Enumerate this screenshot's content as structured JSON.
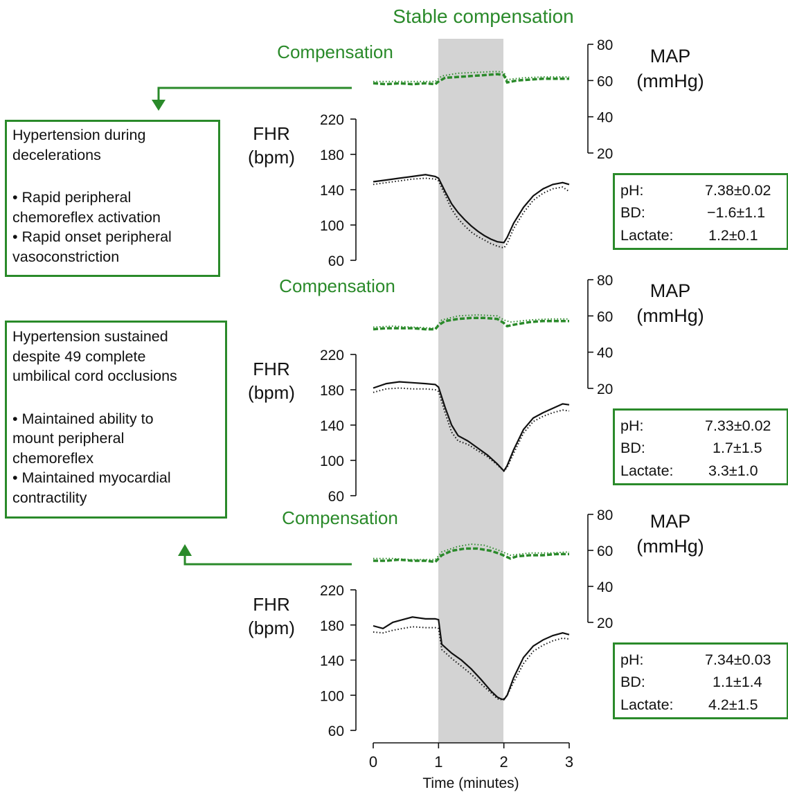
{
  "chart_data": {
    "type": "line",
    "title": "Stable compensation",
    "xlabel": "Time (minutes)",
    "x_ticks": [
      "0",
      "1",
      "2",
      "3"
    ],
    "xlim": [
      0,
      3
    ],
    "occlusion_shading": [
      1,
      2
    ],
    "colors": {
      "map": "#2a8a2a",
      "fhr": "#111111",
      "shade": "#d3d3d3",
      "accent": "#2a8a2a"
    },
    "panels": [
      {
        "phase_label": "Compensation",
        "fhr_label": [
          "FHR",
          "(bpm)"
        ],
        "fhr_ticks": [
          "220",
          "180",
          "140",
          "100",
          "60"
        ],
        "fhr_ylim": [
          60,
          220
        ],
        "map_label": [
          "MAP",
          "(mmHg)"
        ],
        "map_ticks": [
          "80",
          "60",
          "40",
          "20"
        ],
        "map_ylim": [
          20,
          80
        ],
        "fhr_solid": [
          [
            0,
            149
          ],
          [
            0.2,
            151
          ],
          [
            0.4,
            153
          ],
          [
            0.6,
            155
          ],
          [
            0.8,
            157
          ],
          [
            0.95,
            155
          ],
          [
            1.0,
            153
          ],
          [
            1.1,
            138
          ],
          [
            1.2,
            124
          ],
          [
            1.3,
            114
          ],
          [
            1.4,
            106
          ],
          [
            1.5,
            99
          ],
          [
            1.6,
            93
          ],
          [
            1.7,
            88
          ],
          [
            1.8,
            84
          ],
          [
            1.9,
            81
          ],
          [
            2.0,
            80
          ],
          [
            2.05,
            86
          ],
          [
            2.15,
            102
          ],
          [
            2.3,
            120
          ],
          [
            2.45,
            133
          ],
          [
            2.6,
            141
          ],
          [
            2.75,
            146
          ],
          [
            2.9,
            148
          ],
          [
            3.0,
            146
          ]
        ],
        "fhr_dotted": [
          [
            0,
            146
          ],
          [
            0.2,
            148
          ],
          [
            0.4,
            150
          ],
          [
            0.6,
            152
          ],
          [
            0.8,
            153
          ],
          [
            0.95,
            152
          ],
          [
            1.0,
            150
          ],
          [
            1.1,
            134
          ],
          [
            1.2,
            118
          ],
          [
            1.3,
            107
          ],
          [
            1.4,
            99
          ],
          [
            1.5,
            92
          ],
          [
            1.6,
            87
          ],
          [
            1.7,
            83
          ],
          [
            1.8,
            79
          ],
          [
            1.9,
            76
          ],
          [
            2.0,
            74
          ],
          [
            2.05,
            79
          ],
          [
            2.15,
            96
          ],
          [
            2.3,
            114
          ],
          [
            2.45,
            128
          ],
          [
            2.6,
            136
          ],
          [
            2.75,
            141
          ],
          [
            2.9,
            143
          ],
          [
            3.0,
            138
          ]
        ],
        "map_dashed": [
          [
            0,
            55
          ],
          [
            0.2,
            54
          ],
          [
            0.4,
            55
          ],
          [
            0.6,
            54
          ],
          [
            0.8,
            55
          ],
          [
            0.95,
            54
          ],
          [
            1.0,
            57
          ],
          [
            1.1,
            61
          ],
          [
            1.3,
            62
          ],
          [
            1.5,
            63
          ],
          [
            1.7,
            64
          ],
          [
            1.9,
            65
          ],
          [
            2.0,
            64
          ],
          [
            2.05,
            56
          ],
          [
            2.2,
            58
          ],
          [
            2.4,
            59
          ],
          [
            2.6,
            60
          ],
          [
            2.8,
            60
          ],
          [
            3.0,
            60
          ]
        ],
        "map_dotted": [
          [
            0,
            57
          ],
          [
            0.3,
            57
          ],
          [
            0.6,
            57
          ],
          [
            0.95,
            57
          ],
          [
            1.05,
            63
          ],
          [
            1.3,
            66
          ],
          [
            1.6,
            67
          ],
          [
            1.9,
            68
          ],
          [
            2.0,
            67
          ],
          [
            2.05,
            59
          ],
          [
            2.3,
            61
          ],
          [
            2.6,
            62
          ],
          [
            3.0,
            62
          ]
        ],
        "labs": {
          "ph": "7.38±0.02",
          "bd": "−1.6±1.1",
          "lactate": "1.2±0.1"
        }
      },
      {
        "phase_label": "Compensation",
        "fhr_label": [
          "FHR",
          "(bpm)"
        ],
        "fhr_ticks": [
          "220",
          "180",
          "140",
          "100",
          "60"
        ],
        "fhr_ylim": [
          60,
          220
        ],
        "map_label": [
          "MAP",
          "(mmHg)"
        ],
        "map_ticks": [
          "80",
          "60",
          "40",
          "20"
        ],
        "map_ylim": [
          20,
          80
        ],
        "fhr_solid": [
          [
            0,
            182
          ],
          [
            0.2,
            187
          ],
          [
            0.4,
            189
          ],
          [
            0.6,
            188
          ],
          [
            0.8,
            187
          ],
          [
            0.95,
            186
          ],
          [
            1.0,
            183
          ],
          [
            1.1,
            160
          ],
          [
            1.2,
            140
          ],
          [
            1.3,
            128
          ],
          [
            1.45,
            122
          ],
          [
            1.6,
            114
          ],
          [
            1.75,
            106
          ],
          [
            1.9,
            96
          ],
          [
            2.0,
            88
          ],
          [
            2.05,
            94
          ],
          [
            2.15,
            112
          ],
          [
            2.3,
            135
          ],
          [
            2.45,
            148
          ],
          [
            2.6,
            154
          ],
          [
            2.75,
            159
          ],
          [
            2.9,
            164
          ],
          [
            3.0,
            163
          ]
        ],
        "fhr_dotted": [
          [
            0,
            177
          ],
          [
            0.2,
            181
          ],
          [
            0.4,
            182
          ],
          [
            0.6,
            181
          ],
          [
            0.8,
            181
          ],
          [
            0.95,
            180
          ],
          [
            1.0,
            178
          ],
          [
            1.1,
            154
          ],
          [
            1.2,
            132
          ],
          [
            1.3,
            122
          ],
          [
            1.45,
            118
          ],
          [
            1.6,
            111
          ],
          [
            1.75,
            104
          ],
          [
            1.9,
            95
          ],
          [
            2.0,
            88
          ],
          [
            2.05,
            92
          ],
          [
            2.15,
            108
          ],
          [
            2.3,
            131
          ],
          [
            2.45,
            144
          ],
          [
            2.6,
            150
          ],
          [
            2.75,
            154
          ],
          [
            2.9,
            157
          ],
          [
            3.0,
            156
          ]
        ],
        "map_dashed": [
          [
            0,
            47
          ],
          [
            0.2,
            48
          ],
          [
            0.4,
            48
          ],
          [
            0.6,
            48
          ],
          [
            0.8,
            47
          ],
          [
            0.95,
            47
          ],
          [
            1.0,
            51
          ],
          [
            1.1,
            55
          ],
          [
            1.3,
            57
          ],
          [
            1.5,
            58
          ],
          [
            1.7,
            58
          ],
          [
            1.9,
            57
          ],
          [
            2.0,
            53
          ],
          [
            2.05,
            50
          ],
          [
            2.2,
            52
          ],
          [
            2.4,
            54
          ],
          [
            2.6,
            55
          ],
          [
            2.8,
            55
          ],
          [
            3.0,
            55
          ]
        ],
        "map_dotted": [
          [
            0,
            49
          ],
          [
            0.3,
            50
          ],
          [
            0.6,
            49
          ],
          [
            0.95,
            48
          ],
          [
            1.05,
            56
          ],
          [
            1.3,
            60
          ],
          [
            1.6,
            61
          ],
          [
            1.9,
            60
          ],
          [
            2.0,
            56
          ],
          [
            2.1,
            54
          ],
          [
            2.4,
            56
          ],
          [
            2.7,
            57
          ],
          [
            3.0,
            57
          ]
        ],
        "labs": {
          "ph": "7.33±0.02",
          "bd": "1.7±1.5",
          "lactate": "3.3±1.0"
        }
      },
      {
        "phase_label": "Compensation",
        "fhr_label": [
          "FHR",
          "(bpm)"
        ],
        "fhr_ticks": [
          "220",
          "180",
          "140",
          "100",
          "60"
        ],
        "fhr_ylim": [
          60,
          220
        ],
        "map_label": [
          "MAP",
          "(mmHg)"
        ],
        "map_ticks": [
          "80",
          "60",
          "40",
          "20"
        ],
        "map_ylim": [
          20,
          80
        ],
        "fhr_solid": [
          [
            0,
            179
          ],
          [
            0.15,
            176
          ],
          [
            0.3,
            183
          ],
          [
            0.45,
            186
          ],
          [
            0.6,
            189
          ],
          [
            0.8,
            187
          ],
          [
            0.95,
            187
          ],
          [
            1.0,
            186
          ],
          [
            1.05,
            158
          ],
          [
            1.2,
            148
          ],
          [
            1.35,
            140
          ],
          [
            1.5,
            130
          ],
          [
            1.65,
            118
          ],
          [
            1.8,
            105
          ],
          [
            1.9,
            98
          ],
          [
            1.95,
            96
          ],
          [
            2.0,
            95
          ],
          [
            2.05,
            100
          ],
          [
            2.15,
            120
          ],
          [
            2.3,
            143
          ],
          [
            2.45,
            156
          ],
          [
            2.6,
            163
          ],
          [
            2.75,
            168
          ],
          [
            2.9,
            171
          ],
          [
            3.0,
            169
          ]
        ],
        "fhr_dotted": [
          [
            0,
            172
          ],
          [
            0.15,
            171
          ],
          [
            0.3,
            174
          ],
          [
            0.45,
            176
          ],
          [
            0.6,
            178
          ],
          [
            0.8,
            177
          ],
          [
            0.95,
            177
          ],
          [
            1.0,
            176
          ],
          [
            1.05,
            152
          ],
          [
            1.2,
            142
          ],
          [
            1.35,
            133
          ],
          [
            1.5,
            124
          ],
          [
            1.65,
            113
          ],
          [
            1.8,
            103
          ],
          [
            1.9,
            96
          ],
          [
            1.95,
            95
          ],
          [
            2.0,
            96
          ],
          [
            2.05,
            100
          ],
          [
            2.15,
            115
          ],
          [
            2.3,
            136
          ],
          [
            2.45,
            150
          ],
          [
            2.6,
            157
          ],
          [
            2.75,
            162
          ],
          [
            2.9,
            165
          ],
          [
            3.0,
            164
          ]
        ],
        "map_dashed": [
          [
            0,
            50
          ],
          [
            0.2,
            50
          ],
          [
            0.4,
            51
          ],
          [
            0.6,
            50
          ],
          [
            0.8,
            50
          ],
          [
            0.95,
            49
          ],
          [
            1.05,
            55
          ],
          [
            1.2,
            59
          ],
          [
            1.4,
            61
          ],
          [
            1.6,
            61
          ],
          [
            1.8,
            59
          ],
          [
            1.95,
            56
          ],
          [
            2.1,
            52
          ],
          [
            2.2,
            54
          ],
          [
            2.4,
            55
          ],
          [
            2.6,
            55
          ],
          [
            2.8,
            56
          ],
          [
            3.0,
            56
          ]
        ],
        "map_dotted": [
          [
            0,
            52
          ],
          [
            0.3,
            52
          ],
          [
            0.6,
            51
          ],
          [
            0.95,
            51
          ],
          [
            1.05,
            58
          ],
          [
            1.3,
            63
          ],
          [
            1.5,
            65
          ],
          [
            1.7,
            64
          ],
          [
            1.9,
            60
          ],
          [
            2.1,
            55
          ],
          [
            2.4,
            57
          ],
          [
            2.7,
            57
          ],
          [
            3.0,
            58
          ]
        ],
        "labs": {
          "ph": "7.34±0.03",
          "bd": "1.1±1.4",
          "lactate": "4.2±1.5"
        }
      }
    ],
    "lab_labels": {
      "ph": "pH:",
      "bd": "BD:",
      "lactate": "Lactate:"
    }
  },
  "side_boxes": {
    "top": {
      "heading": [
        "Hypertension during",
        "decelerations"
      ],
      "bullets": [
        [
          "•  Rapid peripheral",
          "chemoreflex activation"
        ],
        [
          "•  Rapid onset peripheral",
          "vasoconstriction"
        ]
      ]
    },
    "bottom": {
      "heading": [
        "Hypertension sustained",
        "despite 49 complete",
        "umbilical cord occlusions"
      ],
      "bullets": [
        [
          "•  Maintained ability to",
          "mount peripheral",
          "chemoreflex"
        ],
        [
          "•  Maintained myocardial",
          "contractility"
        ]
      ]
    }
  }
}
